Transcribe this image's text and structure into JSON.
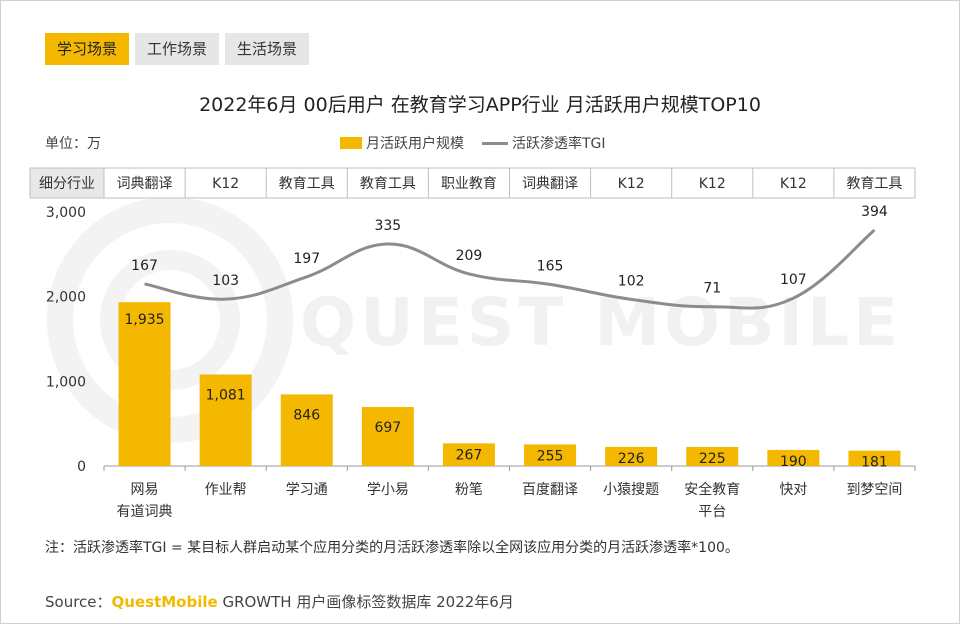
{
  "tabs": [
    {
      "label": "学习场景",
      "active": true
    },
    {
      "label": "工作场景",
      "active": false
    },
    {
      "label": "生活场景",
      "active": false
    }
  ],
  "unit_label": "单位：万",
  "category_header": "细分行业",
  "note": "注：活跃渗透率TGI = 某目标人群启动某个应用分类的月活跃渗透率除以全网该应用分类的月活跃渗透率*100。",
  "source": {
    "prefix": "Source：",
    "brand": "QuestMobile",
    "text": " GROWTH 用户画像标签数据库 2022年6月"
  },
  "watermark": "QUEST MOBILE",
  "colors": {
    "bar": "#f5b800",
    "line": "#8c8c8c",
    "tab_active": "#f5b800"
  },
  "chart_data": {
    "type": "bar",
    "title": "2022年6月 00后用户 在教育学习APP行业 月活跃用户规模TOP10",
    "categories": [
      "网易有道词典",
      "作业帮",
      "学习通",
      "学小易",
      "粉笔",
      "百度翻译",
      "小猿搜题",
      "安全教育平台",
      "快对",
      "到梦空间"
    ],
    "category_lines": [
      [
        "网易",
        "有道词典"
      ],
      [
        "作业帮"
      ],
      [
        "学习通"
      ],
      [
        "学小易"
      ],
      [
        "粉笔"
      ],
      [
        "百度翻译"
      ],
      [
        "小猿搜题"
      ],
      [
        "安全教育",
        "平台"
      ],
      [
        "快对"
      ],
      [
        "到梦空间"
      ]
    ],
    "segments": [
      "词典翻译",
      "K12",
      "教育工具",
      "教育工具",
      "职业教育",
      "词典翻译",
      "K12",
      "K12",
      "K12",
      "教育工具"
    ],
    "series": [
      {
        "name": "月活跃用户规模",
        "type": "bar",
        "values": [
          1935,
          1081,
          846,
          697,
          267,
          255,
          226,
          225,
          190,
          181
        ],
        "labels": [
          "1,935",
          "1,081",
          "846",
          "697",
          "267",
          "255",
          "226",
          "225",
          "190",
          "181"
        ]
      },
      {
        "name": "活跃渗透率TGI",
        "type": "line",
        "values": [
          167,
          103,
          197,
          335,
          209,
          165,
          102,
          71,
          107,
          394
        ]
      }
    ],
    "yticks": [
      "3,000",
      "2,000",
      "1,000",
      "0"
    ],
    "ylim": [
      0,
      3000
    ],
    "tgi_ylim": [
      -600,
      470
    ]
  }
}
